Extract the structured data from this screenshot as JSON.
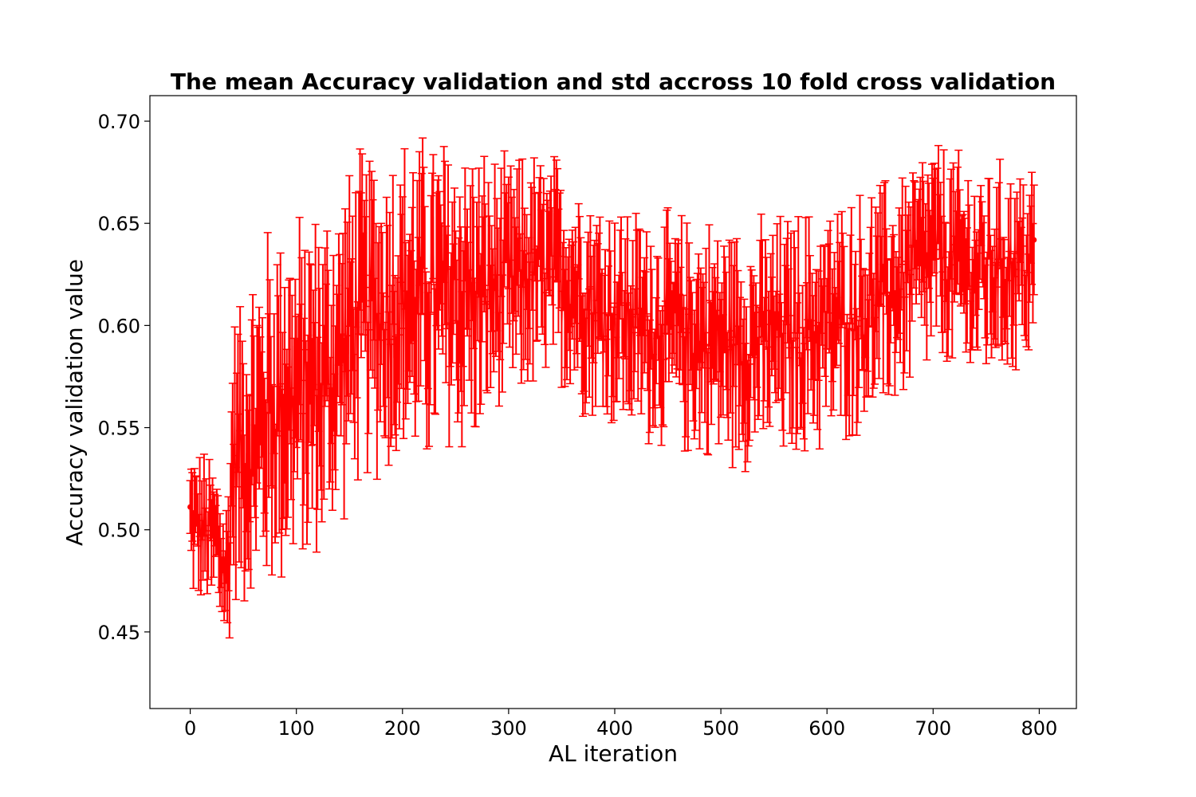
{
  "chart_data": {
    "type": "line",
    "title": "The mean Accuracy validation and std accross 10 fold cross validation",
    "xlabel": "AL iteration",
    "ylabel": "Accuracy validation value",
    "xlim": [
      -38,
      835
    ],
    "ylim": [
      0.4125,
      0.7125
    ],
    "x_ticks": [
      0,
      100,
      200,
      300,
      400,
      500,
      600,
      700,
      800
    ],
    "y_ticks": [
      0.45,
      0.5,
      0.55,
      0.6,
      0.65,
      0.7
    ],
    "y_tick_labels": [
      "0.45",
      "0.50",
      "0.55",
      "0.60",
      "0.65",
      "0.70"
    ],
    "grid": false,
    "error_bars": true,
    "series": [
      {
        "color": "#ff0000",
        "x_start": 0,
        "x_end": 795,
        "x_step": 1,
        "mean_trend": [
          {
            "x": 0,
            "y": 0.505
          },
          {
            "x": 10,
            "y": 0.5
          },
          {
            "x": 25,
            "y": 0.495
          },
          {
            "x": 35,
            "y": 0.475
          },
          {
            "x": 40,
            "y": 0.535
          },
          {
            "x": 60,
            "y": 0.545
          },
          {
            "x": 75,
            "y": 0.56
          },
          {
            "x": 100,
            "y": 0.565
          },
          {
            "x": 130,
            "y": 0.575
          },
          {
            "x": 160,
            "y": 0.605
          },
          {
            "x": 200,
            "y": 0.61
          },
          {
            "x": 250,
            "y": 0.615
          },
          {
            "x": 280,
            "y": 0.615
          },
          {
            "x": 320,
            "y": 0.625
          },
          {
            "x": 350,
            "y": 0.625
          },
          {
            "x": 380,
            "y": 0.61
          },
          {
            "x": 420,
            "y": 0.6
          },
          {
            "x": 470,
            "y": 0.595
          },
          {
            "x": 520,
            "y": 0.59
          },
          {
            "x": 570,
            "y": 0.595
          },
          {
            "x": 610,
            "y": 0.6
          },
          {
            "x": 660,
            "y": 0.615
          },
          {
            "x": 700,
            "y": 0.635
          },
          {
            "x": 740,
            "y": 0.625
          },
          {
            "x": 795,
            "y": 0.63
          }
        ],
        "std_trend": [
          {
            "x": 0,
            "y": 0.018
          },
          {
            "x": 35,
            "y": 0.022
          },
          {
            "x": 40,
            "y": 0.035
          },
          {
            "x": 75,
            "y": 0.045
          },
          {
            "x": 150,
            "y": 0.04
          },
          {
            "x": 250,
            "y": 0.04
          },
          {
            "x": 300,
            "y": 0.03
          },
          {
            "x": 400,
            "y": 0.028
          },
          {
            "x": 550,
            "y": 0.03
          },
          {
            "x": 700,
            "y": 0.028
          },
          {
            "x": 795,
            "y": 0.025
          }
        ]
      }
    ]
  }
}
